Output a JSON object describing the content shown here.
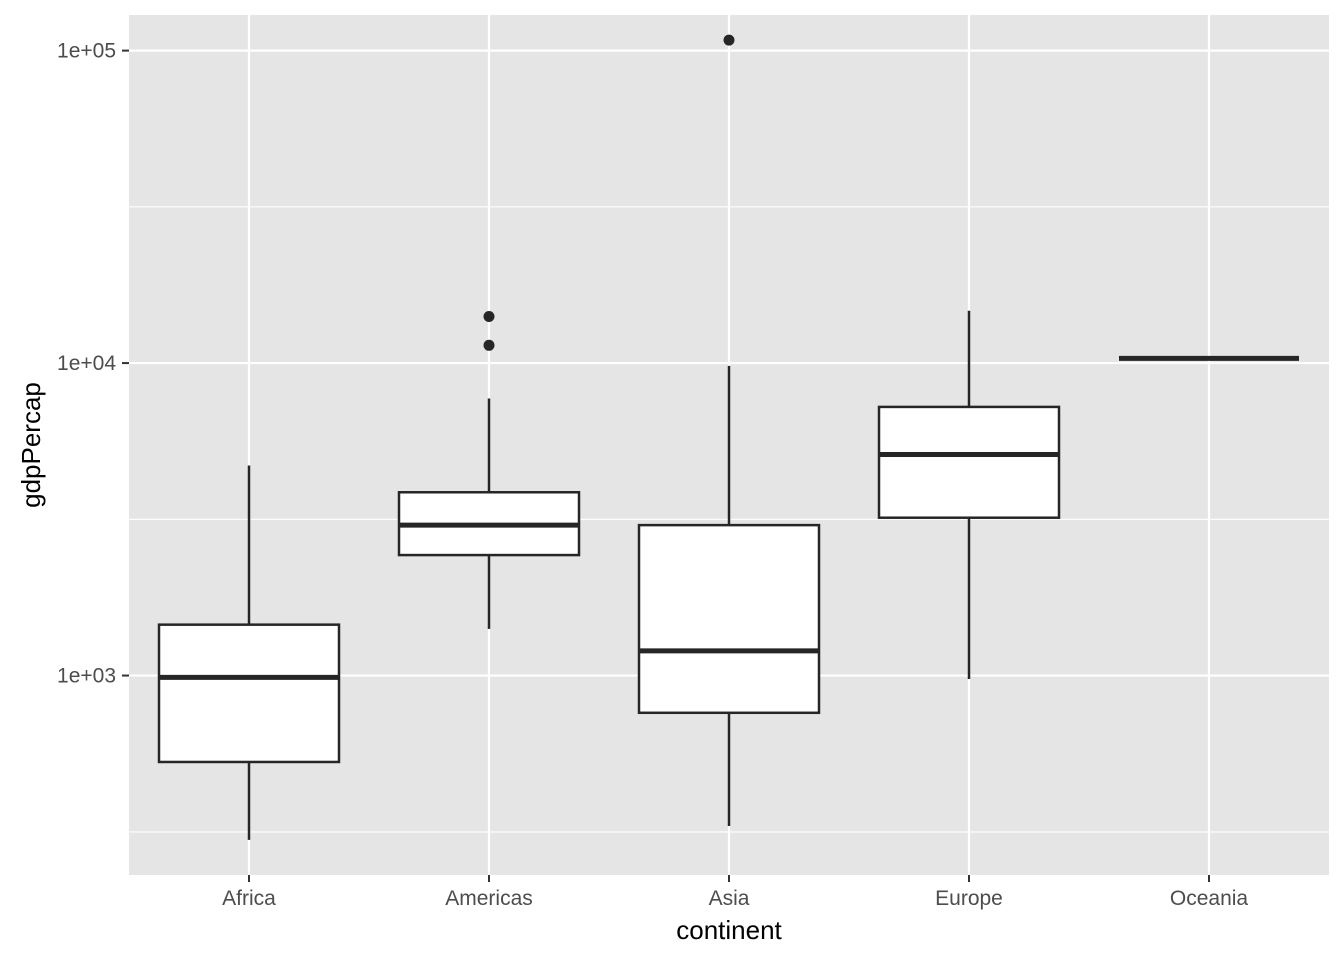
{
  "chart_data": {
    "type": "boxplot",
    "title": "",
    "xlabel": "continent",
    "ylabel": "gdpPercap",
    "y_scale": "log10",
    "ylim": [
      230,
      130000
    ],
    "y_major_ticks": [
      {
        "value": 1000,
        "label": "1e+03"
      },
      {
        "value": 10000,
        "label": "1e+04"
      },
      {
        "value": 100000,
        "label": "1e+05"
      }
    ],
    "y_minor_gridlines": [
      316,
      3162,
      31623
    ],
    "grid": true,
    "legend": "none",
    "colors": {
      "panel": "#e5e5e5",
      "grid": "#ffffff",
      "box_fill": "#ffffff",
      "box_stroke": "#262626",
      "tick_text": "#4d4d4d"
    },
    "categories": [
      "Africa",
      "Americas",
      "Asia",
      "Europe",
      "Oceania"
    ],
    "boxes": [
      {
        "category": "Africa",
        "whisker_low": 298,
        "q1": 529,
        "median": 987,
        "q3": 1455,
        "whisker_high": 4700,
        "outliers": []
      },
      {
        "category": "Americas",
        "whisker_low": 1410,
        "q1": 2430,
        "median": 3030,
        "q3": 3860,
        "whisker_high": 7700,
        "outliers": [
          11400,
          14100
        ]
      },
      {
        "category": "Asia",
        "whisker_low": 330,
        "q1": 760,
        "median": 1200,
        "q3": 3030,
        "whisker_high": 9800,
        "outliers": [
          108000
        ]
      },
      {
        "category": "Europe",
        "whisker_low": 975,
        "q1": 3200,
        "median": 5100,
        "q3": 7240,
        "whisker_high": 14700,
        "outliers": []
      },
      {
        "category": "Oceania",
        "whisker_low": 10350,
        "q1": 10350,
        "median": 10350,
        "q3": 10350,
        "whisker_high": 10350,
        "outliers": []
      }
    ]
  }
}
